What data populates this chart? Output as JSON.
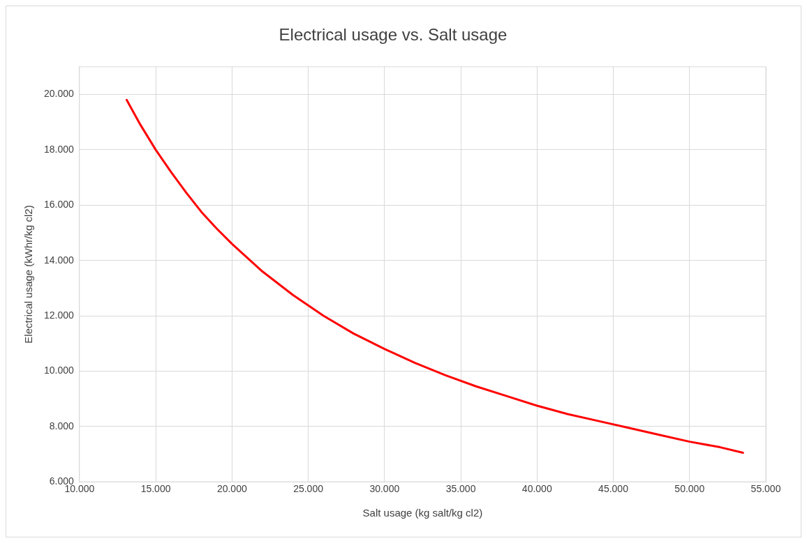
{
  "chart_data": {
    "type": "line",
    "title": "Electrical usage vs. Salt usage",
    "xlabel": "Salt usage (kg salt/kg cl2)",
    "ylabel": "Electrical usage (kWhr/kg cl2)",
    "series": [
      {
        "color": "#ff0000",
        "x": [
          13.1,
          14,
          15,
          16,
          17,
          18,
          19,
          20,
          22,
          24,
          26,
          28,
          30,
          32,
          34,
          36,
          38,
          40,
          42,
          44,
          46,
          48,
          50,
          52,
          53.5
        ],
        "values": [
          19.8,
          18.9,
          18.0,
          17.2,
          16.45,
          15.75,
          15.15,
          14.6,
          13.6,
          12.75,
          12.0,
          11.35,
          10.8,
          10.3,
          9.85,
          9.45,
          9.1,
          8.75,
          8.45,
          8.2,
          7.95,
          7.7,
          7.45,
          7.25,
          7.05
        ]
      }
    ],
    "xlim": [
      10,
      55
    ],
    "xticks": [
      {
        "value": 10,
        "label": "10.000"
      },
      {
        "value": 15,
        "label": "15.000"
      },
      {
        "value": 20,
        "label": "20.000"
      },
      {
        "value": 25,
        "label": "25.000"
      },
      {
        "value": 30,
        "label": "30.000"
      },
      {
        "value": 35,
        "label": "35.000"
      },
      {
        "value": 40,
        "label": "40.000"
      },
      {
        "value": 45,
        "label": "45.000"
      },
      {
        "value": 50,
        "label": "50.000"
      },
      {
        "value": 55,
        "label": "55.000"
      }
    ],
    "ylim": [
      6,
      21
    ],
    "yticks": [
      {
        "value": 6,
        "label": "6.000"
      },
      {
        "value": 8,
        "label": "8.000"
      },
      {
        "value": 10,
        "label": "10.000"
      },
      {
        "value": 12,
        "label": "12.000"
      },
      {
        "value": 14,
        "label": "14.000"
      },
      {
        "value": 16,
        "label": "16.000"
      },
      {
        "value": 18,
        "label": "18.000"
      },
      {
        "value": 20,
        "label": "20.000"
      }
    ],
    "grid": true,
    "legend": false,
    "marker": "none",
    "line_style": "solid"
  }
}
